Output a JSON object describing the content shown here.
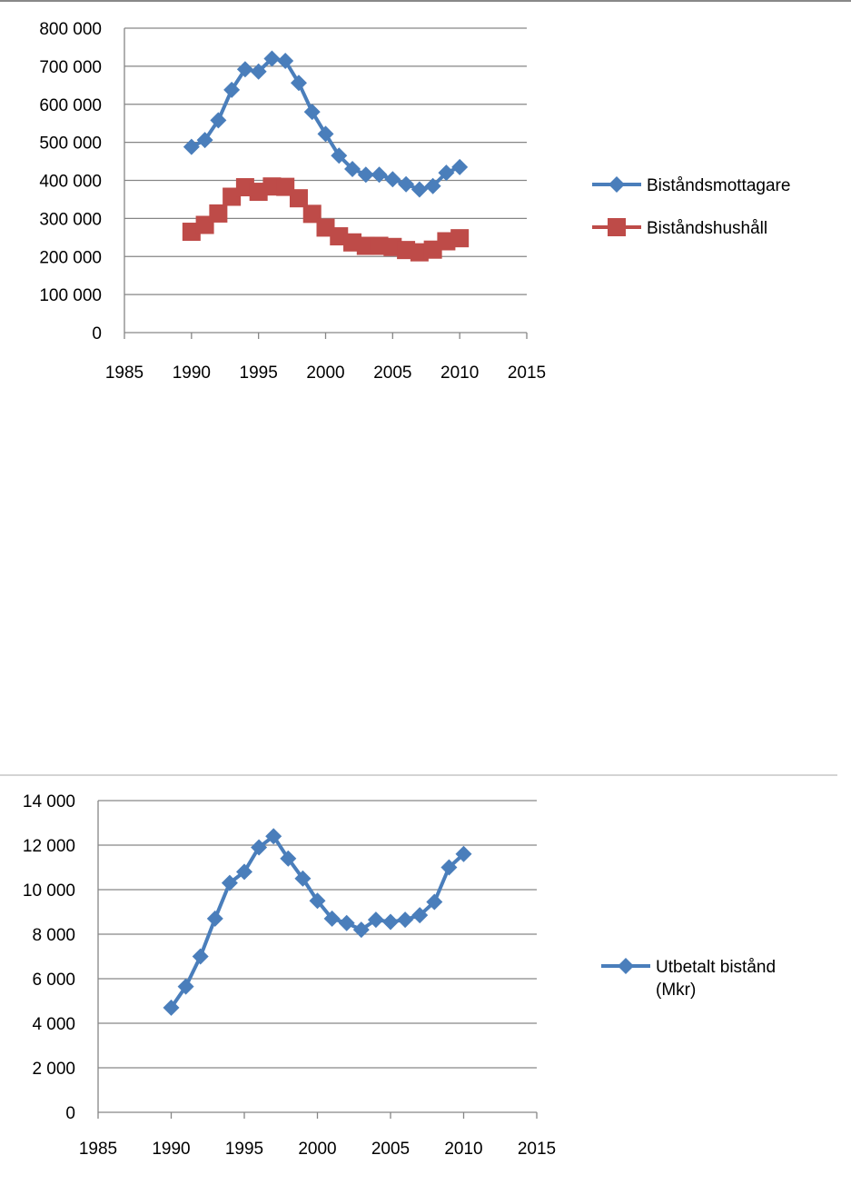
{
  "chart_data": [
    {
      "type": "line",
      "title": "",
      "xlabel": "",
      "ylabel": "",
      "xlim": [
        1985,
        2015
      ],
      "ylim": [
        0,
        800000
      ],
      "xticks": [
        "1985",
        "1990",
        "1995",
        "2000",
        "2005",
        "2010",
        "2015"
      ],
      "yticks": [
        "0",
        "100 000",
        "200 000",
        "300 000",
        "400 000",
        "500 000",
        "600 000",
        "700 000",
        "800 000"
      ],
      "grid": true,
      "legend_position": "right",
      "x": [
        1990,
        1991,
        1992,
        1993,
        1994,
        1995,
        1996,
        1997,
        1998,
        1999,
        2000,
        2001,
        2002,
        2003,
        2004,
        2005,
        2006,
        2007,
        2008,
        2009,
        2010
      ],
      "series": [
        {
          "name": "Biståndsmottagare",
          "color": "#4a7ebb",
          "marker": "diamond",
          "values": [
            488000,
            506000,
            558000,
            638000,
            692000,
            686000,
            720000,
            714000,
            656000,
            580000,
            522000,
            465000,
            430000,
            415000,
            415000,
            403000,
            390000,
            376000,
            385000,
            420000,
            435000
          ]
        },
        {
          "name": "Biståndshushåll",
          "color": "#be4b48",
          "marker": "square",
          "values": [
            265000,
            283000,
            313000,
            357000,
            382000,
            370000,
            384000,
            383000,
            353000,
            312000,
            276000,
            253000,
            237000,
            228000,
            228000,
            225000,
            217000,
            211000,
            218000,
            240000,
            248000
          ]
        }
      ]
    },
    {
      "type": "line",
      "title": "",
      "xlabel": "",
      "ylabel": "",
      "xlim": [
        1985,
        2015
      ],
      "ylim": [
        0,
        14000
      ],
      "xticks": [
        "1985",
        "1990",
        "1995",
        "2000",
        "2005",
        "2010",
        "2015"
      ],
      "yticks": [
        "0",
        "2 000",
        "4 000",
        "6 000",
        "8 000",
        "10 000",
        "12 000",
        "14 000"
      ],
      "grid": true,
      "legend_position": "right",
      "x": [
        1990,
        1991,
        1992,
        1993,
        1994,
        1995,
        1996,
        1997,
        1998,
        1999,
        2000,
        2001,
        2002,
        2003,
        2004,
        2005,
        2006,
        2007,
        2008,
        2009,
        2010
      ],
      "series": [
        {
          "name": "Utbetalt bistånd",
          "name_line2": "(Mkr)",
          "color": "#4a7ebb",
          "marker": "diamond",
          "values": [
            4700,
            5650,
            7000,
            8700,
            10300,
            10800,
            11900,
            12400,
            11400,
            10500,
            9500,
            8700,
            8500,
            8200,
            8650,
            8550,
            8650,
            8850,
            9450,
            11000,
            11600
          ]
        }
      ]
    }
  ]
}
